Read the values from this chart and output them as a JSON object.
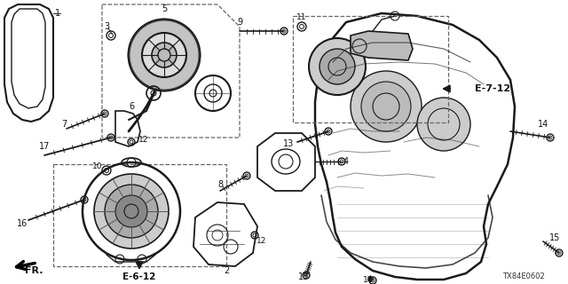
{
  "bg_color": "#ffffff",
  "lc": "#1a1a1a",
  "dc": "#666666",
  "diagram_code": "TX84E0602",
  "e612": "E-6-12",
  "e712": "E-7-12",
  "fr": "FR.",
  "figsize": [
    6.4,
    3.2
  ],
  "dpi": 100
}
